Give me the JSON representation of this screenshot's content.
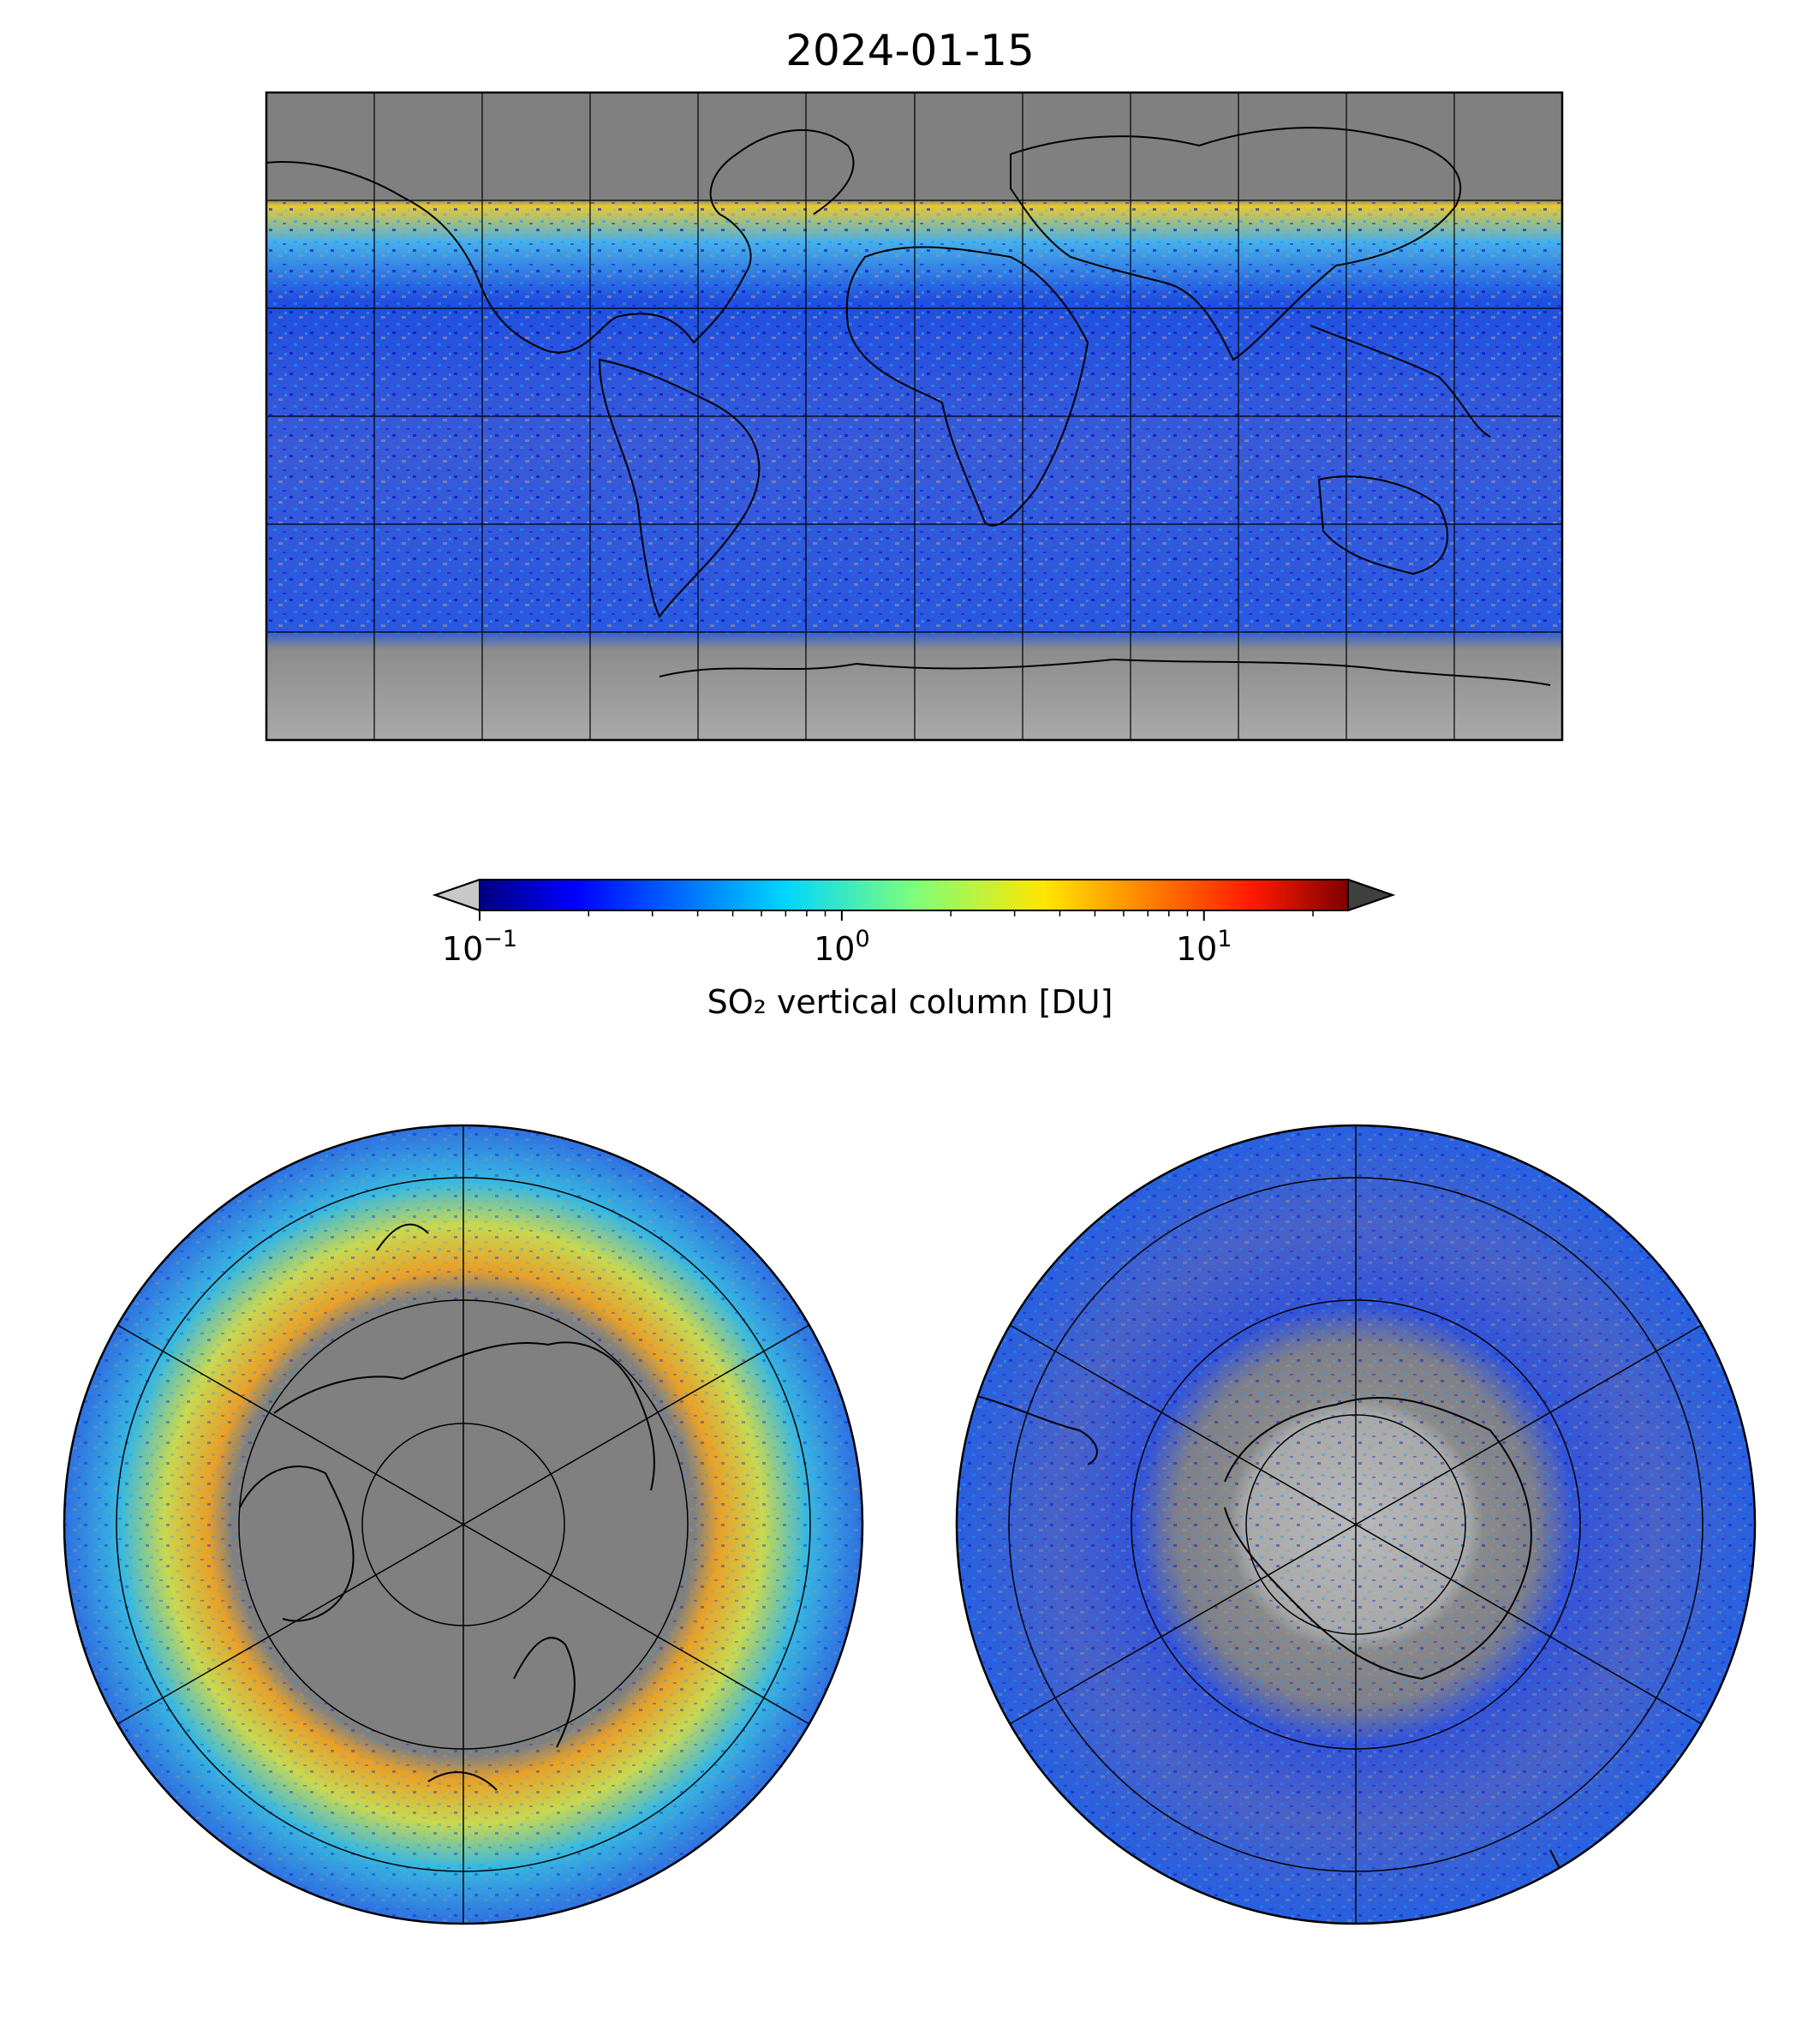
{
  "title": "2024-01-15",
  "colorbar": {
    "label": "SO₂ vertical column [DU]",
    "scale": "log",
    "range": [
      0.1,
      25
    ],
    "extend": "both",
    "under_color": "#c8c8c8",
    "over_color": "#404040",
    "colormap": "jet",
    "major_ticks": [
      {
        "value": 0.1,
        "base": "10",
        "exp": "−1"
      },
      {
        "value": 1,
        "base": "10",
        "exp": "0"
      },
      {
        "value": 10,
        "base": "10",
        "exp": "1"
      }
    ]
  },
  "maps": {
    "global": {
      "projection": "plate-carree",
      "grid_lon_step_deg": 30,
      "grid_lat_step_deg": 30,
      "no_data_color": "#808080"
    },
    "north_pole": {
      "projection": "north-polar-stereographic",
      "no_data_color": "#808080"
    },
    "south_pole": {
      "projection": "south-polar-stereographic",
      "no_data_color": "#808080"
    }
  }
}
